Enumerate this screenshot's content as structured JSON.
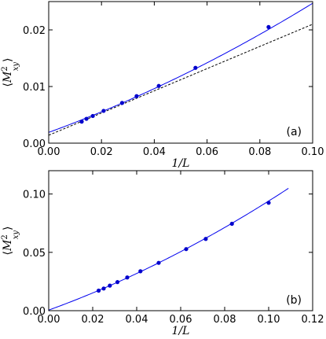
{
  "colors": {
    "series": "#0000cc",
    "fit": "#0000ee",
    "dashed": "#000000"
  },
  "chart_data": [
    {
      "type": "scatter",
      "panel_label": "(a)",
      "xlabel": "1/L",
      "ylabel": "⟨M²xy⟩",
      "ylabel_parts": {
        "open": "⟨",
        "base": "M",
        "sup": "2",
        "sub": "xy",
        "close": "⟩"
      },
      "xlim": [
        0,
        0.1
      ],
      "ylim": [
        0,
        0.025
      ],
      "xticks": [
        0.0,
        0.02,
        0.04,
        0.06,
        0.08,
        0.1
      ],
      "xtick_labels": [
        "0.00",
        "0.02",
        "0.04",
        "0.06",
        "0.08",
        "0.10"
      ],
      "yticks": [
        0.0,
        0.01,
        0.02
      ],
      "ytick_labels": [
        "0.00",
        "0.01",
        "0.02"
      ],
      "series": [
        {
          "x": [
            0.0125,
            0.0143,
            0.0167,
            0.0208,
            0.0278,
            0.0333,
            0.0417,
            0.0556,
            0.0833
          ],
          "y": [
            0.0038,
            0.0043,
            0.0048,
            0.0057,
            0.0071,
            0.0083,
            0.0101,
            0.0133,
            0.0205
          ]
        }
      ],
      "fit_solid": {
        "x_range": [
          0,
          0.1
        ],
        "coef": [
          0.0019,
          0.17,
          0.58
        ]
      },
      "fit_dashed": {
        "x_range": [
          0,
          0.1
        ],
        "coef": [
          0.0014,
          0.196,
          0
        ]
      }
    },
    {
      "type": "scatter",
      "panel_label": "(b)",
      "xlabel": "1/L",
      "ylabel": "⟨M²xy⟩",
      "ylabel_parts": {
        "open": "⟨",
        "base": "M",
        "sup": "2",
        "sub": "xy",
        "close": "⟩"
      },
      "xlim": [
        0,
        0.12
      ],
      "ylim": [
        0,
        0.12
      ],
      "xticks": [
        0.0,
        0.02,
        0.04,
        0.06,
        0.08,
        0.1,
        0.12
      ],
      "xtick_labels": [
        "0.00",
        "0.02",
        "0.04",
        "0.06",
        "0.08",
        "0.10",
        "0.12"
      ],
      "yticks": [
        0.0,
        0.05,
        0.1
      ],
      "ytick_labels": [
        "0.00",
        "0.05",
        "0.10"
      ],
      "series": [
        {
          "x": [
            0.0227,
            0.025,
            0.0278,
            0.03125,
            0.0357,
            0.0417,
            0.05,
            0.0625,
            0.0714,
            0.0833,
            0.1
          ],
          "y": [
            0.0172,
            0.019,
            0.0215,
            0.0245,
            0.0285,
            0.0338,
            0.041,
            0.0528,
            0.0615,
            0.0745,
            0.0925
          ]
        }
      ],
      "fit_solid": {
        "x_range": [
          0,
          0.109
        ],
        "coef": [
          0.0005,
          0.685,
          2.5
        ]
      }
    }
  ]
}
